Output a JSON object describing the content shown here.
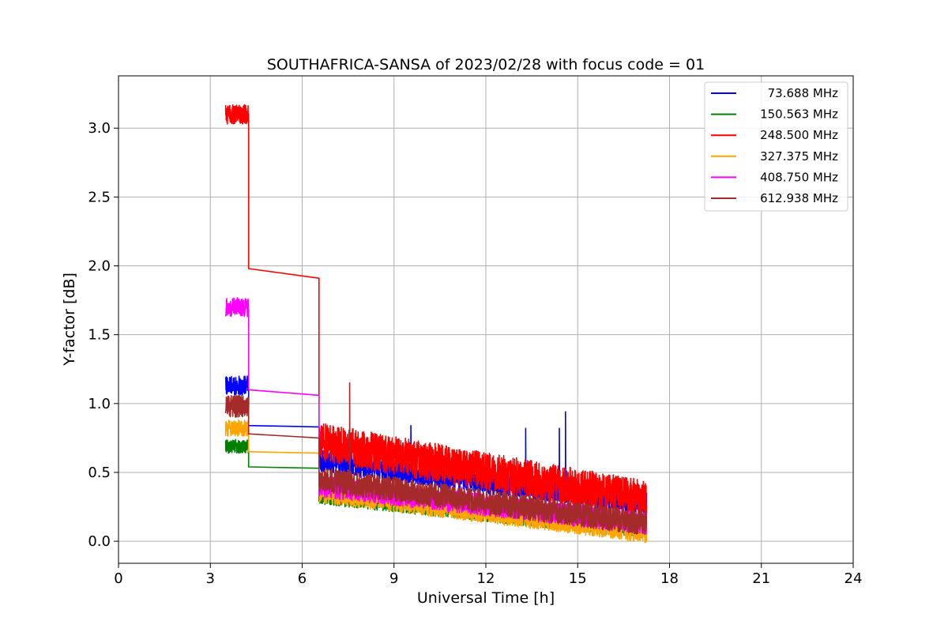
{
  "chart_data": {
    "type": "line",
    "title": "SOUTHAFRICA-SANSA of 2023/02/28 with focus code = 01",
    "xlabel": "Universal Time [h]",
    "ylabel": "Y-factor [dB]",
    "xlim": [
      0,
      24
    ],
    "ylim": [
      -0.16,
      3.38
    ],
    "xticks": [
      0,
      3,
      6,
      9,
      12,
      15,
      18,
      21,
      24
    ],
    "xtick_labels": [
      "0",
      "3",
      "6",
      "9",
      "12",
      "15",
      "18",
      "21",
      "24"
    ],
    "yticks": [
      0.0,
      0.5,
      1.0,
      1.5,
      2.0,
      2.5,
      3.0
    ],
    "ytick_labels": [
      "0.0",
      "0.5",
      "1.0",
      "1.5",
      "2.0",
      "2.5",
      "3.0"
    ],
    "grid": true,
    "legend_position": "top-right",
    "series": [
      {
        "name": "73.688 MHz",
        "color": "#0000ff",
        "segments": [
          {
            "x": [
              3.5,
              4.25
            ],
            "base": 1.13,
            "noise": 0.07
          },
          {
            "x": [
              4.25,
              6.55
            ],
            "y": [
              0.84,
              0.83
            ]
          },
          {
            "x": [
              6.55,
              17.25
            ],
            "base_start": 0.58,
            "base_end": 0.28,
            "noise": 0.08
          }
        ],
        "spikes": [
          [
            9.55,
            0.84
          ],
          [
            13.3,
            0.82
          ],
          [
            14.4,
            0.82
          ],
          [
            14.6,
            0.94
          ]
        ]
      },
      {
        "name": "150.563 MHz",
        "color": "#008000",
        "segments": [
          {
            "x": [
              3.5,
              4.25
            ],
            "base": 0.69,
            "noise": 0.05
          },
          {
            "x": [
              4.25,
              6.55
            ],
            "y": [
              0.54,
              0.53
            ]
          },
          {
            "x": [
              6.55,
              17.25
            ],
            "base_start": 0.33,
            "base_end": 0.08,
            "noise": 0.06
          }
        ]
      },
      {
        "name": "248.500 MHz",
        "color": "#ff0000",
        "segments": [
          {
            "x": [
              3.5,
              4.25
            ],
            "base": 3.1,
            "noise": 0.07
          },
          {
            "x": [
              4.25,
              6.55
            ],
            "y": [
              1.98,
              1.91
            ]
          },
          {
            "x": [
              6.55,
              17.25
            ],
            "base_start": 0.72,
            "base_end": 0.3,
            "noise": 0.14
          }
        ]
      },
      {
        "name": "327.375 MHz",
        "color": "#ffa500",
        "segments": [
          {
            "x": [
              3.5,
              4.25
            ],
            "base": 0.82,
            "noise": 0.06
          },
          {
            "x": [
              4.25,
              6.55
            ],
            "y": [
              0.65,
              0.64
            ]
          },
          {
            "x": [
              6.55,
              17.25
            ],
            "base_start": 0.35,
            "base_end": 0.06,
            "noise": 0.07
          }
        ]
      },
      {
        "name": "408.750 MHz",
        "color": "#ff00ff",
        "segments": [
          {
            "x": [
              3.5,
              4.25
            ],
            "base": 1.7,
            "noise": 0.07
          },
          {
            "x": [
              4.25,
              6.55
            ],
            "y": [
              1.1,
              1.06
            ]
          },
          {
            "x": [
              6.55,
              17.25
            ],
            "base_start": 0.4,
            "base_end": 0.13,
            "noise": 0.08
          }
        ]
      },
      {
        "name": "612.938 MHz",
        "color": "#a52a2a",
        "segments": [
          {
            "x": [
              3.5,
              4.25
            ],
            "base": 0.98,
            "noise": 0.08
          },
          {
            "x": [
              4.25,
              6.55
            ],
            "y": [
              0.78,
              0.75
            ]
          },
          {
            "x": [
              6.55,
              17.25
            ],
            "base_start": 0.45,
            "base_end": 0.13,
            "noise": 0.09
          }
        ],
        "spikes": [
          [
            7.55,
            1.15
          ]
        ]
      }
    ]
  }
}
